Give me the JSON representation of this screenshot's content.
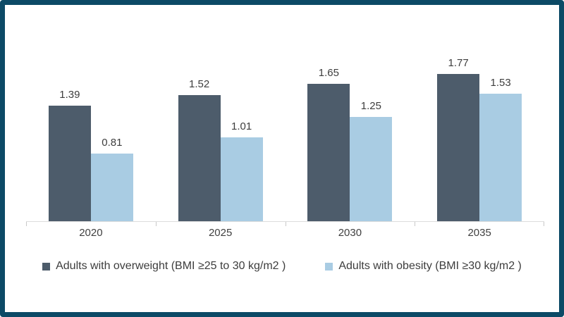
{
  "frame": {
    "border_color": "#0c4a66",
    "background": "#ffffff"
  },
  "chart_data": {
    "type": "bar",
    "title": "",
    "xlabel": "",
    "ylabel": "",
    "categories": [
      "2020",
      "2025",
      "2030",
      "2035"
    ],
    "series": [
      {
        "name": "Adults with overweight (BMI ≥25 to 30 kg/m2 )",
        "color": "#4d5c6b",
        "values": [
          1.39,
          1.52,
          1.65,
          1.77
        ]
      },
      {
        "name": "Adults with obesity (BMI ≥30 kg/m2 )",
        "color": "#a9cce3",
        "values": [
          0.81,
          1.01,
          1.25,
          1.53
        ]
      }
    ],
    "ylim": [
      0,
      2.0
    ],
    "grid": false,
    "axis_line_color": "#dcdcdc",
    "tick_color": "#c8c8c8",
    "value_labels_shown": true,
    "legend_position": "bottom"
  }
}
